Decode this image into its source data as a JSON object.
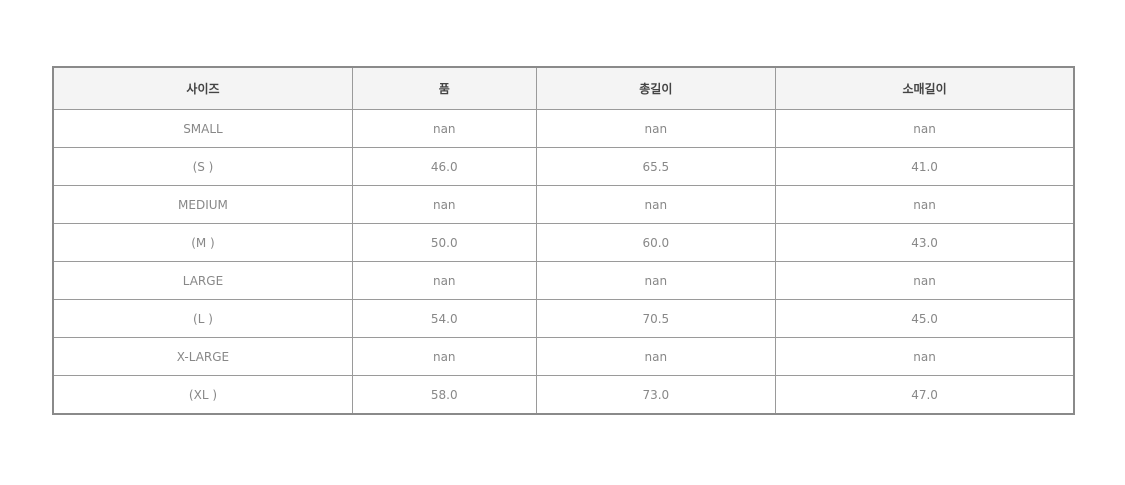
{
  "table": {
    "headers": [
      "사이즈",
      "품",
      "총길이",
      "소매길이"
    ],
    "rows": [
      [
        "SMALL",
        "nan",
        "nan",
        "nan"
      ],
      [
        "(S )",
        "46.0",
        "65.5",
        "41.0"
      ],
      [
        "MEDIUM",
        "nan",
        "nan",
        "nan"
      ],
      [
        "(M )",
        "50.0",
        "60.0",
        "43.0"
      ],
      [
        "LARGE",
        "nan",
        "nan",
        "nan"
      ],
      [
        "(L )",
        "54.0",
        "70.5",
        "45.0"
      ],
      [
        "X-LARGE",
        "nan",
        "nan",
        "nan"
      ],
      [
        "(XL )",
        "58.0",
        "73.0",
        "47.0"
      ]
    ]
  }
}
